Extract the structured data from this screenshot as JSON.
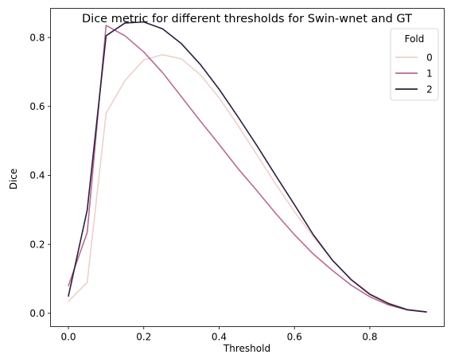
{
  "chart_data": {
    "type": "line",
    "title": "Dice metric for different thresholds for Swin-wnet and GT",
    "xlabel": "Threshold",
    "ylabel": "Dice",
    "xlim": [
      -0.0475,
      0.9975
    ],
    "ylim": [
      -0.0385,
      0.8845
    ],
    "xticks": [
      0.0,
      0.2,
      0.4,
      0.6,
      0.8
    ],
    "xtick_labels": [
      "0.0",
      "0.2",
      "0.4",
      "0.6",
      "0.8"
    ],
    "yticks": [
      0.0,
      0.2,
      0.4,
      0.6,
      0.8
    ],
    "ytick_labels": [
      "0.0",
      "0.2",
      "0.4",
      "0.6",
      "0.8"
    ],
    "grid": false,
    "legend": {
      "title": "Fold",
      "placement": "top-right"
    },
    "x": [
      0.0,
      0.05,
      0.1,
      0.15,
      0.2,
      0.25,
      0.3,
      0.35,
      0.4,
      0.45,
      0.5,
      0.55,
      0.6,
      0.65,
      0.7,
      0.75,
      0.8,
      0.85,
      0.9,
      0.95
    ],
    "series": [
      {
        "name": "0",
        "color": "#edd1cb",
        "values": [
          0.035,
          0.09,
          0.58,
          0.675,
          0.735,
          0.75,
          0.738,
          0.692,
          0.625,
          0.545,
          0.46,
          0.375,
          0.295,
          0.222,
          0.155,
          0.1,
          0.058,
          0.03,
          0.012,
          0.004
        ]
      },
      {
        "name": "1",
        "color": "#b86a94",
        "values": [
          0.08,
          0.235,
          0.835,
          0.805,
          0.758,
          0.698,
          0.628,
          0.558,
          0.49,
          0.42,
          0.356,
          0.29,
          0.228,
          0.172,
          0.125,
          0.082,
          0.048,
          0.024,
          0.01,
          0.004
        ]
      },
      {
        "name": "2",
        "color": "#2d1e3e",
        "values": [
          0.05,
          0.3,
          0.805,
          0.842,
          0.845,
          0.825,
          0.782,
          0.722,
          0.65,
          0.57,
          0.487,
          0.4,
          0.315,
          0.228,
          0.155,
          0.098,
          0.055,
          0.028,
          0.01,
          0.004
        ]
      }
    ]
  }
}
